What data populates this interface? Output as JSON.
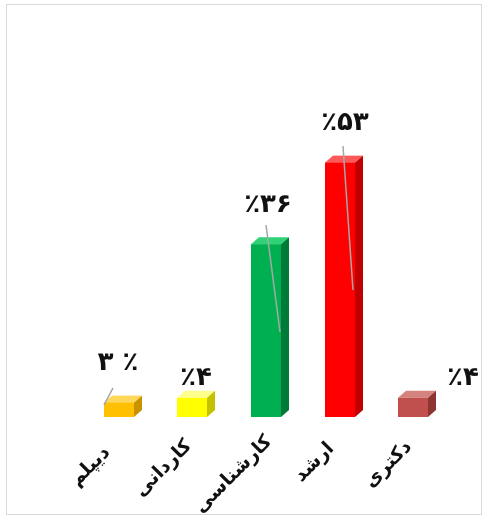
{
  "chart_data": {
    "type": "bar",
    "title": "",
    "xlabel": "",
    "ylabel": "",
    "ylim": [
      0,
      60
    ],
    "grid": false,
    "legend": "none",
    "categories": [
      "دیپلم",
      "کاردانی",
      "کارشناسی",
      "ارشد",
      "دکتری"
    ],
    "values": [
      3,
      4,
      36,
      53,
      4
    ],
    "labels": [
      "۳ ٪",
      "٪۴",
      "٪۳۶",
      "٪۵۳",
      "٪۴"
    ],
    "colors": {
      "front": [
        "#ffc000",
        "#ffff00",
        "#00b050",
        "#ff0000",
        "#c0504d"
      ],
      "top": [
        "#ffd85a",
        "#ffff8c",
        "#2fd276",
        "#ff5a5a",
        "#d5837f"
      ],
      "side": [
        "#c89200",
        "#c2c200",
        "#007a38",
        "#c00000",
        "#8e3532"
      ]
    }
  }
}
